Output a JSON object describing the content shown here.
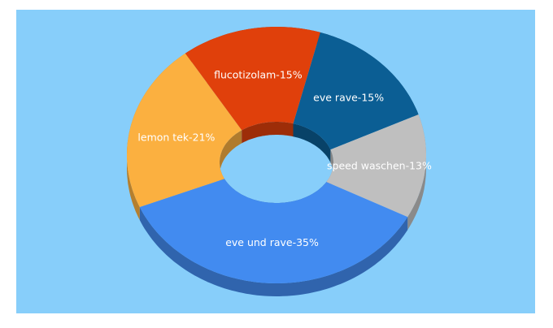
{
  "chart_data": {
    "type": "donut3d",
    "values": [
      15,
      13,
      35,
      21,
      15
    ],
    "value_labels": [
      "eve rave-15%",
      "speed waschen-13%",
      "eve und rave-35%",
      "lemon tek-21%",
      "flucotizolam-15%"
    ],
    "colors": [
      "#0b5e94",
      "#bfbfbf",
      "#428bf0",
      "#fbb040",
      "#e0400b"
    ]
  }
}
